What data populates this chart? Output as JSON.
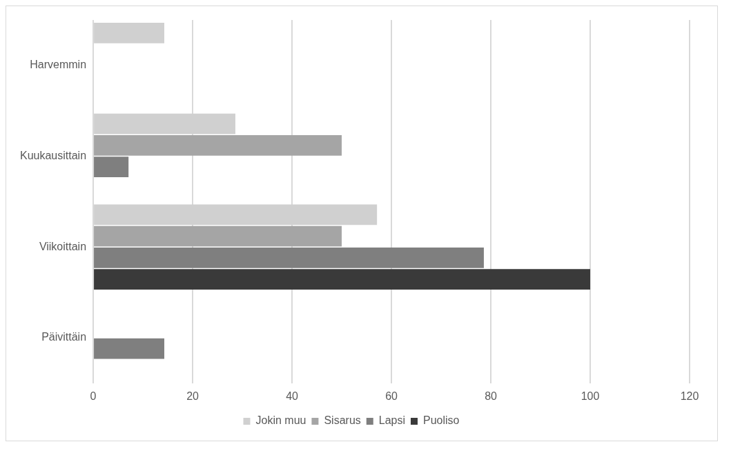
{
  "chart_data": {
    "type": "bar",
    "orientation": "horizontal",
    "categories": [
      "Harvemmin",
      "Kuukausittain",
      "Viikoittain",
      "Päivittäin"
    ],
    "series": [
      {
        "name": "Jokin muu",
        "color": "#d0d0d0",
        "values": [
          14.3,
          28.6,
          57.1,
          null
        ]
      },
      {
        "name": "Sisarus",
        "color": "#a5a5a5",
        "values": [
          null,
          50,
          50,
          null
        ]
      },
      {
        "name": "Lapsi",
        "color": "#7f7f7f",
        "values": [
          null,
          7.1,
          78.6,
          14.3
        ]
      },
      {
        "name": "Puoliso",
        "color": "#3a3a3a",
        "values": [
          null,
          null,
          100,
          null
        ]
      }
    ],
    "xlim": [
      0,
      120
    ],
    "xticks": [
      0,
      20,
      40,
      60,
      80,
      100,
      120
    ],
    "grid": "x",
    "legend": "bottom"
  }
}
